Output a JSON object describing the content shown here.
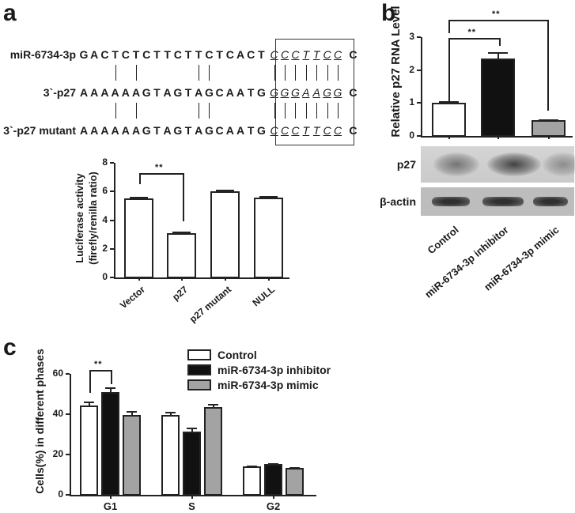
{
  "panels": {
    "a": {
      "label": "a",
      "alignment": {
        "rows": [
          {
            "label": "miR-6734-3p",
            "sequence": "GACTCTCTTCTTCTCACT",
            "box": "CCCTTCC",
            "tail": "C"
          },
          {
            "label": "3`-p27",
            "sequence": "AAAAAAGTAGTAGCAATG",
            "box": "GGGAAGG",
            "tail": "C"
          },
          {
            "label": "3`-p27 mutant",
            "sequence": "AAAAAAGTAGTAGCAATG",
            "box": "CCCTTCC",
            "tail": "C"
          }
        ],
        "pair_positions": [
          3,
          5,
          11,
          12
        ]
      }
    },
    "b": {
      "label": "b",
      "blot": {
        "rows": [
          {
            "label": "p27"
          },
          {
            "label": "β-actin"
          }
        ]
      }
    },
    "c": {
      "label": "c"
    }
  },
  "chart_data": [
    {
      "id": "a",
      "type": "bar",
      "title": "",
      "categories": [
        "Vector",
        "p27",
        "p27 mutant",
        "NULL"
      ],
      "values": [
        5.5,
        3.1,
        6.0,
        5.55
      ],
      "errors": [
        0.15,
        0.08,
        0.1,
        0.15
      ],
      "xlabel": "",
      "ylabel_line1": "Luciferase activity",
      "ylabel_line2": "(firefly/renilla ratio)",
      "ylim": [
        0,
        8
      ],
      "yticks": [
        "0",
        "2",
        "4",
        "6",
        "8"
      ],
      "grid": false,
      "annotations": [
        {
          "from": "Vector",
          "to": "p27",
          "text": "**"
        }
      ],
      "bar_color": "#ffffff"
    },
    {
      "id": "b",
      "type": "bar",
      "title": "",
      "categories": [
        "Control",
        "miR-6734-3p inhibitor",
        "miR-6734-3p mimic"
      ],
      "values": [
        1.0,
        2.35,
        0.47
      ],
      "errors": [
        0.05,
        0.2,
        0.03
      ],
      "ylabel": "Relative p27 RNA Level",
      "ylim": [
        0,
        3
      ],
      "yticks": [
        "0",
        "1",
        "2",
        "3"
      ],
      "grid": false,
      "colors": [
        "#ffffff",
        "#111111",
        "#a3a3a3"
      ],
      "annotations": [
        {
          "from": "Control",
          "to": "miR-6734-3p inhibitor",
          "text": "**"
        },
        {
          "from": "Control",
          "to": "miR-6734-3p mimic",
          "text": "**"
        }
      ]
    },
    {
      "id": "c",
      "type": "bar",
      "title": "",
      "categories": [
        "G1",
        "S",
        "G2"
      ],
      "series": [
        {
          "name": "Control",
          "color": "#ffffff",
          "values": [
            44.5,
            39.5,
            14.0
          ],
          "errors": [
            1.8,
            1.5,
            0.4
          ]
        },
        {
          "name": "miR-6734-3p inhibitor",
          "color": "#111111",
          "values": [
            51.0,
            31.5,
            15.2
          ],
          "errors": [
            2.2,
            2.0,
            0.3
          ]
        },
        {
          "name": "miR-6734-3p mimic",
          "color": "#a3a3a3",
          "values": [
            39.7,
            43.5,
            13.5
          ],
          "errors": [
            2.0,
            1.5,
            0.3
          ]
        }
      ],
      "ylabel": "Cells(%) in different phases",
      "ylim": [
        0,
        60
      ],
      "yticks": [
        "0",
        "20",
        "40",
        "60"
      ],
      "grid": false,
      "legend_position": "top-right",
      "annotations": [
        {
          "category": "G1",
          "from": "Control",
          "to": "miR-6734-3p inhibitor",
          "text": "**"
        }
      ]
    }
  ]
}
